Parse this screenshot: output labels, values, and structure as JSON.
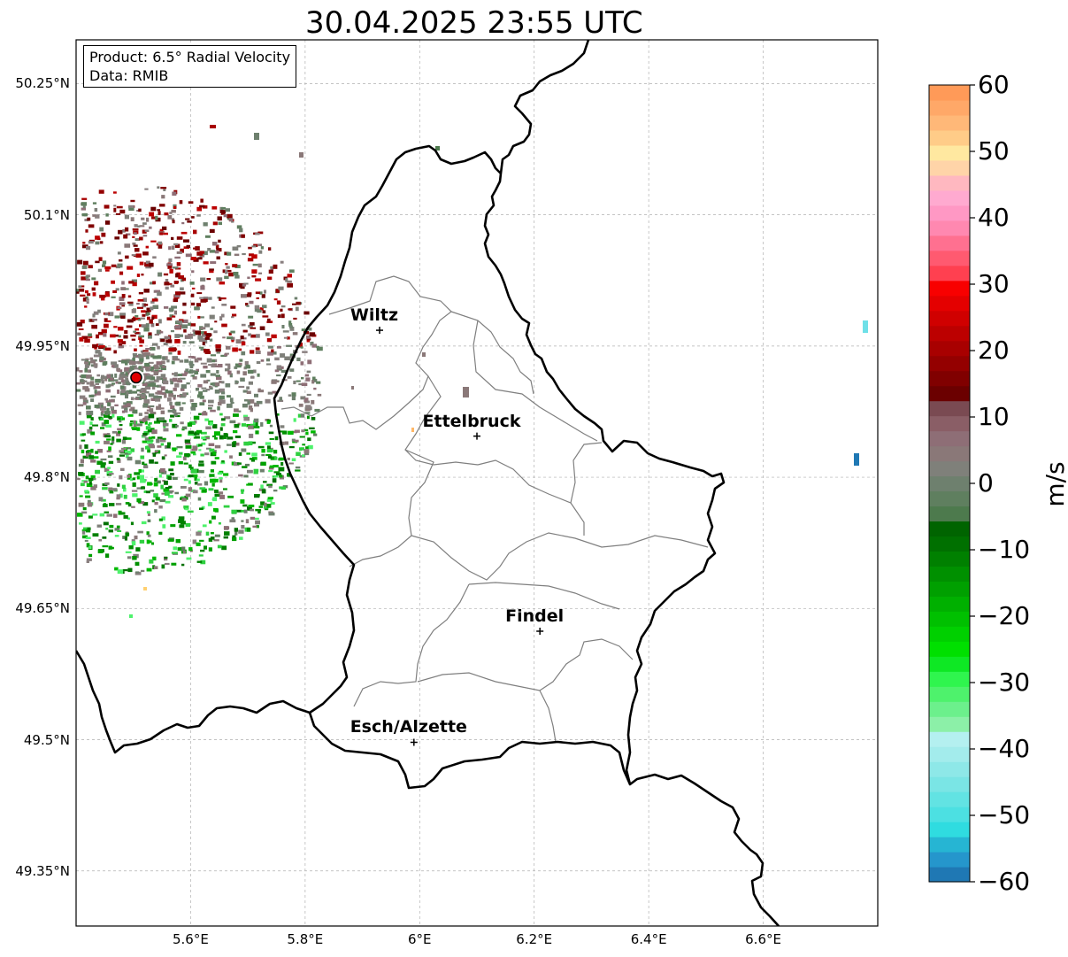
{
  "title": "30.04.2025 23:55 UTC",
  "info": {
    "product": "Product: 6.5° Radial Velocity",
    "data_source": "Data: RMIB"
  },
  "lat_labels": [
    "50.25°N",
    "50.1°N",
    "49.95°N",
    "49.8°N",
    "49.65°N",
    "49.5°N",
    "49.35°N"
  ],
  "lon_labels": [
    "5.6°E",
    "5.8°E",
    "6°E",
    "6.2°E",
    "6.4°E",
    "6.6°E"
  ],
  "cities": [
    {
      "name": "Wiltz",
      "lon": 5.93,
      "lat": 49.968
    },
    {
      "name": "Ettelbruck",
      "lon": 6.1,
      "lat": 49.847
    },
    {
      "name": "Findel",
      "lon": 6.21,
      "lat": 49.624
    },
    {
      "name": "Esch/Alzette",
      "lon": 5.99,
      "lat": 49.497
    }
  ],
  "radar_site": {
    "lon": 5.505,
    "lat": 49.914
  },
  "colorbar": {
    "unit": "m/s",
    "min": -60,
    "max": 60,
    "ticks": [
      "60",
      "50",
      "40",
      "30",
      "20",
      "10",
      "0",
      "−10",
      "−20",
      "−30",
      "−40",
      "−50",
      "−60"
    ],
    "colors": [
      "#1f78b4",
      "#2596cc",
      "#26b5d3",
      "#2fdce0",
      "#4ce0e2",
      "#62e3e3",
      "#7ae5e5",
      "#8ee8e8",
      "#a3ecec",
      "#b4f0f0",
      "#8cf0a8",
      "#6cf08c",
      "#4ef26c",
      "#2ff54e",
      "#0ee824",
      "#00e000",
      "#00d000",
      "#00c000",
      "#00b000",
      "#00a000",
      "#009000",
      "#008000",
      "#007000",
      "#006400",
      "#4d7a4d",
      "#5f7f5f",
      "#6e806e",
      "#7f807a",
      "#8a7878",
      "#8e6e76",
      "#8a5e66",
      "#7a4a52",
      "#6b0000",
      "#800000",
      "#940000",
      "#a80000",
      "#bc0000",
      "#d00000",
      "#e40000",
      "#f80000",
      "#ff4050",
      "#ff5a70",
      "#ff7090",
      "#ff88b0",
      "#ff98c4",
      "#ffaad0",
      "#ffb8c0",
      "#ffd4a8",
      "#ffe8a0",
      "#ffcc88",
      "#ffb878",
      "#ffa868",
      "#ff9a58"
    ]
  }
}
